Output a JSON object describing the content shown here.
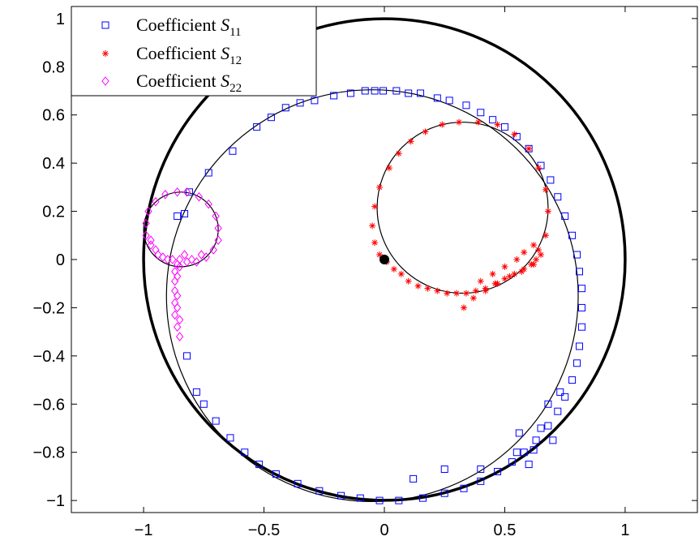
{
  "chart_data": {
    "type": "scatter",
    "title": "",
    "xlabel": "",
    "ylabel": "",
    "xlim": [
      -1.3,
      1.3
    ],
    "ylim": [
      -1.05,
      1.05
    ],
    "x_ticks": [
      -1,
      -0.5,
      0,
      0.5,
      1
    ],
    "x_tick_labels": [
      "−1",
      "−0.5",
      "0",
      "0.5",
      "1"
    ],
    "y_ticks": [
      1,
      0.8,
      0.6,
      0.4,
      0.2,
      0,
      -0.2,
      -0.4,
      -0.6,
      -0.8,
      -1
    ],
    "y_tick_labels": [
      "1",
      "0.8",
      "0.6",
      "0.4",
      "0.2",
      "0",
      "−0.2",
      "−0.4",
      "−0.6",
      "−0.8",
      "−1"
    ],
    "grid": false,
    "legend_position": "top-left",
    "origin_point": {
      "x": 0,
      "y": 0
    },
    "reference_curves": [
      {
        "shape": "circle",
        "center": [
          0,
          0
        ],
        "radius": 1
      },
      {
        "shape": "circle",
        "center": [
          -0.05,
          -0.15
        ],
        "radius": 0.855
      },
      {
        "shape": "circle",
        "center": [
          0.325,
          0.215
        ],
        "radius": 0.355
      },
      {
        "shape": "circle",
        "center": [
          -0.845,
          0.125
        ],
        "radius": 0.155
      }
    ],
    "series": [
      {
        "name": "Coefficient S11",
        "legend_label": "Coefficient",
        "legend_symbol": "S",
        "legend_subscript": "11",
        "marker": "square",
        "color": "#0000ff",
        "points": [
          [
            -0.63,
            0.45
          ],
          [
            -0.53,
            0.55
          ],
          [
            -0.47,
            0.59
          ],
          [
            -0.41,
            0.63
          ],
          [
            -0.35,
            0.65
          ],
          [
            -0.29,
            0.66
          ],
          [
            -0.21,
            0.68
          ],
          [
            -0.14,
            0.69
          ],
          [
            -0.08,
            0.7
          ],
          [
            -0.04,
            0.7
          ],
          [
            -0.005,
            0.7
          ],
          [
            0.05,
            0.7
          ],
          [
            0.1,
            0.69
          ],
          [
            0.15,
            0.69
          ],
          [
            0.22,
            0.67
          ],
          [
            0.27,
            0.66
          ],
          [
            0.34,
            0.64
          ],
          [
            0.4,
            0.61
          ],
          [
            0.45,
            0.58
          ],
          [
            0.5,
            0.55
          ],
          [
            0.55,
            0.51
          ],
          [
            0.6,
            0.46
          ],
          [
            0.65,
            0.39
          ],
          [
            0.69,
            0.33
          ],
          [
            0.72,
            0.26
          ],
          [
            0.75,
            0.18
          ],
          [
            0.78,
            0.1
          ],
          [
            0.8,
            0.02
          ],
          [
            0.81,
            -0.05
          ],
          [
            0.82,
            -0.12
          ],
          [
            0.82,
            -0.2
          ],
          [
            0.82,
            -0.28
          ],
          [
            0.81,
            -0.36
          ],
          [
            0.8,
            -0.43
          ],
          [
            0.78,
            -0.5
          ],
          [
            0.75,
            -0.57
          ],
          [
            0.72,
            -0.63
          ],
          [
            0.68,
            -0.69
          ],
          [
            0.63,
            -0.75
          ],
          [
            0.58,
            -0.8
          ],
          [
            0.53,
            -0.84
          ],
          [
            0.47,
            -0.88
          ],
          [
            0.4,
            -0.92
          ],
          [
            0.33,
            -0.95
          ],
          [
            0.25,
            -0.97
          ],
          [
            0.16,
            -0.99
          ],
          [
            0.06,
            -1.0
          ],
          [
            -0.02,
            -1.0
          ],
          [
            -0.1,
            -0.99
          ],
          [
            -0.18,
            -0.98
          ],
          [
            -0.27,
            -0.96
          ],
          [
            -0.36,
            -0.93
          ],
          [
            -0.45,
            -0.89
          ],
          [
            -0.52,
            -0.85
          ],
          [
            -0.58,
            -0.8
          ],
          [
            -0.64,
            -0.74
          ],
          [
            -0.7,
            -0.67
          ],
          [
            -0.75,
            -0.6
          ],
          [
            -0.78,
            -0.55
          ],
          [
            -0.82,
            -0.4
          ],
          [
            -0.83,
            0.19
          ],
          [
            -0.81,
            0.28
          ],
          [
            -0.73,
            0.36
          ],
          [
            -0.86,
            0.18
          ],
          [
            0.6,
            -0.85
          ],
          [
            0.55,
            -0.8
          ],
          [
            0.65,
            -0.7
          ],
          [
            0.7,
            -0.75
          ],
          [
            0.25,
            -0.87
          ],
          [
            0.12,
            -0.91
          ],
          [
            0.4,
            -0.87
          ],
          [
            0.62,
            -0.79
          ],
          [
            0.56,
            -0.72
          ],
          [
            0.68,
            -0.6
          ],
          [
            0.73,
            -0.55
          ]
        ]
      },
      {
        "name": "Coefficient S12",
        "legend_label": "Coefficient",
        "legend_symbol": "S",
        "legend_subscript": "12",
        "marker": "asterisk",
        "color": "#ff0000",
        "points": [
          [
            0.33,
            -0.2
          ],
          [
            0.37,
            -0.16
          ],
          [
            0.42,
            -0.13
          ],
          [
            0.47,
            -0.1
          ],
          [
            0.52,
            -0.07
          ],
          [
            0.57,
            -0.05
          ],
          [
            0.62,
            -0.02
          ],
          [
            0.65,
            0.02
          ],
          [
            0.67,
            0.1
          ],
          [
            0.68,
            0.2
          ],
          [
            0.67,
            0.29
          ],
          [
            0.64,
            0.38
          ],
          [
            0.6,
            0.46
          ],
          [
            0.54,
            0.52
          ],
          [
            0.47,
            0.56
          ],
          [
            0.39,
            0.57
          ],
          [
            0.31,
            0.57
          ],
          [
            0.24,
            0.56
          ],
          [
            0.17,
            0.53
          ],
          [
            0.11,
            0.49
          ],
          [
            0.06,
            0.44
          ],
          [
            0.02,
            0.38
          ],
          [
            -0.02,
            0.3
          ],
          [
            -0.04,
            0.22
          ],
          [
            -0.05,
            0.14
          ],
          [
            -0.04,
            0.07
          ],
          [
            -0.02,
            0.02
          ],
          [
            0.01,
            -0.01
          ],
          [
            0.04,
            -0.04
          ],
          [
            0.07,
            -0.06
          ],
          [
            0.1,
            -0.09
          ],
          [
            0.14,
            -0.11
          ],
          [
            0.18,
            -0.12
          ],
          [
            0.22,
            -0.13
          ],
          [
            0.26,
            -0.14
          ],
          [
            0.3,
            -0.14
          ],
          [
            0.34,
            -0.14
          ],
          [
            0.38,
            -0.13
          ],
          [
            0.42,
            -0.12
          ],
          [
            0.46,
            -0.1
          ],
          [
            0.5,
            -0.08
          ],
          [
            0.54,
            -0.06
          ],
          [
            0.58,
            -0.04
          ],
          [
            0.61,
            -0.02
          ],
          [
            0.63,
            0.0
          ],
          [
            0.64,
            0.04
          ],
          [
            0.62,
            0.06
          ],
          [
            0.58,
            0.03
          ],
          [
            0.55,
            0.0
          ],
          [
            0.5,
            -0.03
          ],
          [
            0.45,
            -0.06
          ],
          [
            0.4,
            -0.09
          ]
        ]
      },
      {
        "name": "Coefficient S22",
        "legend_label": "Coefficient",
        "legend_symbol": "S",
        "legend_subscript": "22",
        "marker": "diamond",
        "color": "#ff00ff",
        "points": [
          [
            -0.85,
            -0.32
          ],
          [
            -0.86,
            -0.28
          ],
          [
            -0.87,
            -0.23
          ],
          [
            -0.87,
            -0.18
          ],
          [
            -0.87,
            -0.13
          ],
          [
            -0.87,
            -0.09
          ],
          [
            -0.87,
            -0.05
          ],
          [
            -0.86,
            -0.02
          ],
          [
            -0.9,
            0.0
          ],
          [
            -0.94,
            0.02
          ],
          [
            -0.97,
            0.06
          ],
          [
            -0.99,
            0.1
          ],
          [
            -0.99,
            0.15
          ],
          [
            -0.98,
            0.2
          ],
          [
            -0.95,
            0.24
          ],
          [
            -0.91,
            0.27
          ],
          [
            -0.86,
            0.28
          ],
          [
            -0.82,
            0.28
          ],
          [
            -0.77,
            0.26
          ],
          [
            -0.73,
            0.23
          ],
          [
            -0.7,
            0.18
          ],
          [
            -0.69,
            0.13
          ],
          [
            -0.69,
            0.08
          ],
          [
            -0.71,
            0.04
          ],
          [
            -0.74,
            0.01
          ],
          [
            -0.78,
            -0.01
          ],
          [
            -0.82,
            -0.01
          ],
          [
            -0.85,
            0.0
          ],
          [
            -0.88,
            0.0
          ],
          [
            -0.92,
            0.01
          ],
          [
            -0.95,
            0.04
          ],
          [
            -0.97,
            0.08
          ],
          [
            -0.85,
            -0.03
          ],
          [
            -0.8,
            0.0
          ],
          [
            -0.76,
            0.02
          ],
          [
            -0.83,
            0.02
          ],
          [
            -0.86,
            -0.07
          ],
          [
            -0.86,
            -0.15
          ],
          [
            -0.86,
            -0.2
          ],
          [
            -0.85,
            -0.25
          ]
        ]
      }
    ]
  }
}
